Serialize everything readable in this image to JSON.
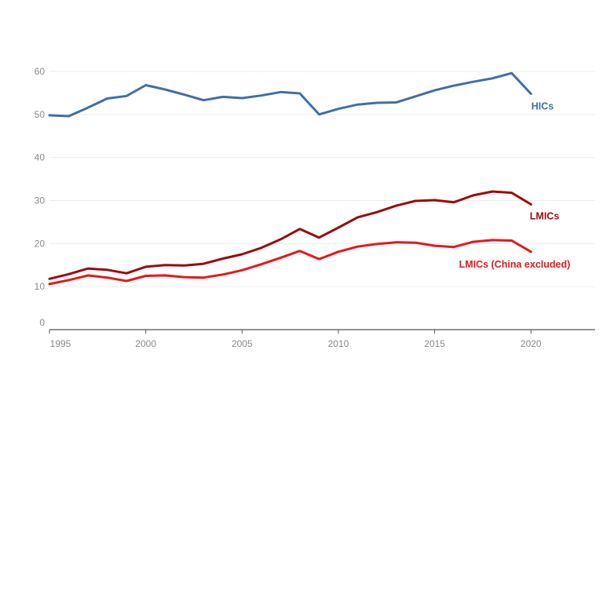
{
  "chart_data": {
    "type": "line",
    "title": "",
    "xlabel": "",
    "ylabel": "",
    "xlim": [
      1995,
      2022
    ],
    "ylim": [
      0,
      60
    ],
    "grid": true,
    "x_ticks": [
      "1995",
      "2000",
      "2005",
      "2010",
      "2015",
      "2020"
    ],
    "y_ticks": [
      "0",
      "10",
      "20",
      "30",
      "40",
      "50",
      "60"
    ],
    "x": [
      1995,
      1996,
      1997,
      1998,
      1999,
      2000,
      2001,
      2002,
      2003,
      2004,
      2005,
      2006,
      2007,
      2008,
      2009,
      2010,
      2011,
      2012,
      2013,
      2014,
      2015,
      2016,
      2017,
      2018,
      2019,
      2020
    ],
    "series": [
      {
        "name": "HICs",
        "color": "#3f6fa6",
        "values": [
          49.8,
          49.6,
          51.6,
          53.7,
          54.3,
          56.8,
          55.8,
          54.6,
          53.3,
          54.1,
          53.8,
          54.4,
          55.2,
          54.9,
          50.0,
          51.3,
          52.3,
          52.7,
          52.8,
          54.2,
          55.6,
          56.7,
          57.6,
          58.4,
          59.6,
          54.8
        ]
      },
      {
        "name": "LMICs",
        "color": "#9b0a0a",
        "values": [
          11.8,
          12.9,
          14.2,
          13.9,
          13.1,
          14.6,
          15.0,
          14.9,
          15.3,
          16.5,
          17.5,
          19.0,
          21.0,
          23.4,
          21.4,
          23.7,
          26.1,
          27.3,
          28.8,
          29.9,
          30.1,
          29.6,
          31.2,
          32.1,
          31.8,
          29.1
        ]
      },
      {
        "name": "LMICs (China excluded)",
        "color": "#e8161c",
        "values": [
          10.6,
          11.5,
          12.6,
          12.1,
          11.3,
          12.5,
          12.6,
          12.2,
          12.1,
          12.8,
          13.8,
          15.2,
          16.7,
          18.3,
          16.4,
          18.1,
          19.3,
          19.9,
          20.3,
          20.2,
          19.5,
          19.2,
          20.4,
          20.8,
          20.7,
          18.1
        ]
      }
    ]
  }
}
